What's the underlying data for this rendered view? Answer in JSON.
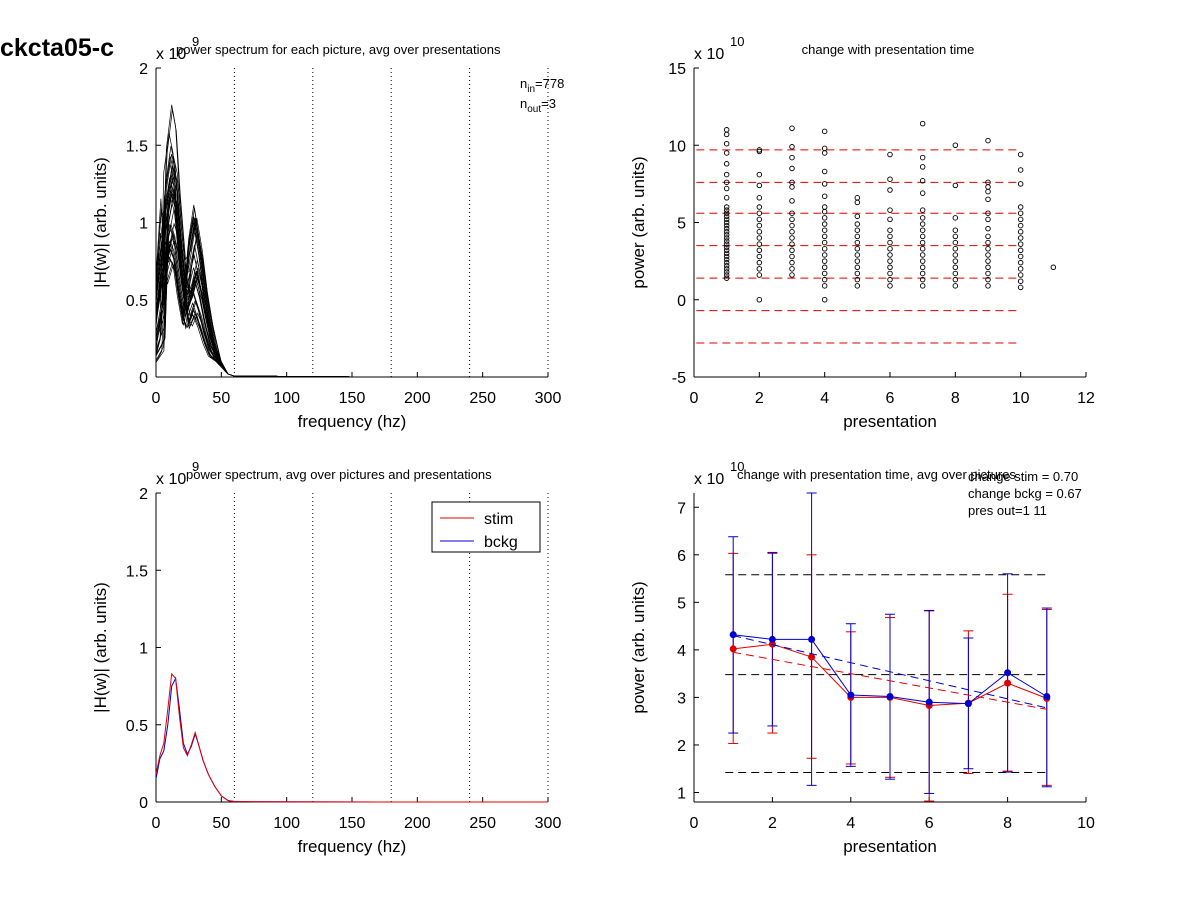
{
  "figure": {
    "supertitle": "ckcta05-c"
  },
  "chart_data": [
    {
      "id": "top-left",
      "type": "line",
      "title": "power spectrum for each picture, avg over presentations",
      "xlabel": "frequency (hz)",
      "ylabel": "|H(w)| (arb. units)",
      "xlim": [
        0,
        300
      ],
      "ylim": [
        0,
        2
      ],
      "xticks": [
        0,
        50,
        100,
        150,
        200,
        250,
        300
      ],
      "yticks": [
        0,
        0.5,
        1,
        1.5,
        2
      ],
      "xtick_labels": [
        "0",
        "50",
        "100",
        "150",
        "200",
        "250",
        "300"
      ],
      "ytick_labels": [
        "0",
        "0.5",
        "1",
        "1.5",
        "2"
      ],
      "exponent_label": "x 10",
      "exponent_power": "9",
      "vlines": [
        60,
        120,
        180,
        240,
        300
      ],
      "annotations": [
        {
          "base": "n",
          "sub": "in",
          "value": "=778"
        },
        {
          "base": "n",
          "sub": "out",
          "value": "=3"
        }
      ],
      "curves_note": "many overlapping per-picture spectra",
      "curve_count": 40,
      "curve_template": {
        "x": [
          0,
          5,
          8,
          12,
          15,
          18,
          22,
          26,
          30,
          34,
          38,
          42,
          48,
          55,
          60,
          70,
          100,
          150,
          300
        ],
        "y": [
          0.45,
          0.8,
          1.05,
          1.25,
          1.15,
          0.85,
          0.55,
          0.6,
          0.75,
          0.6,
          0.4,
          0.25,
          0.1,
          0.02,
          0.005,
          0.008,
          0.003,
          0.001,
          0
        ]
      },
      "color": "#000000"
    },
    {
      "id": "top-right",
      "type": "scatter",
      "title": "change with presentation time",
      "xlabel": "presentation",
      "ylabel": "power (arb. units)",
      "xlim": [
        0,
        12
      ],
      "ylim": [
        -5,
        15
      ],
      "xticks": [
        0,
        2,
        4,
        6,
        8,
        10,
        12
      ],
      "yticks": [
        -5,
        0,
        5,
        10,
        15
      ],
      "xtick_labels": [
        "0",
        "2",
        "4",
        "6",
        "8",
        "10",
        "12"
      ],
      "ytick_labels": [
        "-5",
        "0",
        "5",
        "10",
        "15"
      ],
      "exponent_label": "x 10",
      "exponent_power": "10",
      "hlines": [
        9.7,
        7.6,
        5.6,
        3.5,
        1.4,
        -0.7,
        -2.8
      ],
      "hline_xrange": [
        0.5,
        11
      ],
      "hline_color": "#e00000",
      "points": [
        {
          "x": 1,
          "ys": [
            1.4,
            1.6,
            1.8,
            2.0,
            2.2,
            2.4,
            2.6,
            2.8,
            3.0,
            3.2,
            3.4,
            3.6,
            3.8,
            4.0,
            4.2,
            4.4,
            4.6,
            4.8,
            5.0,
            5.2,
            5.4,
            5.6,
            5.8,
            6.0,
            6.6,
            7.2,
            7.6,
            8.1,
            8.8,
            9.5,
            10.1,
            10.7,
            11.0
          ]
        },
        {
          "x": 2,
          "ys": [
            0.0,
            1.6,
            2.0,
            2.4,
            2.8,
            3.2,
            3.6,
            4.0,
            4.4,
            4.8,
            5.2,
            5.6,
            6.0,
            6.6,
            7.4,
            8.1,
            9.6,
            9.7
          ]
        },
        {
          "x": 3,
          "ys": [
            1.6,
            2.0,
            2.4,
            2.8,
            3.2,
            3.6,
            4.0,
            4.4,
            4.8,
            5.2,
            5.6,
            6.4,
            7.3,
            7.6,
            8.5,
            9.2,
            9.9,
            11.1
          ]
        },
        {
          "x": 4,
          "ys": [
            0.0,
            0.9,
            1.3,
            1.7,
            2.1,
            2.5,
            2.9,
            3.3,
            3.7,
            4.1,
            4.5,
            4.9,
            5.3,
            5.7,
            6.0,
            6.7,
            7.5,
            8.3,
            9.5,
            9.8,
            10.9
          ]
        },
        {
          "x": 5,
          "ys": [
            0.9,
            1.3,
            1.7,
            2.1,
            2.5,
            2.9,
            3.3,
            3.7,
            4.1,
            4.5,
            4.9,
            5.4,
            6.3,
            6.6
          ]
        },
        {
          "x": 6,
          "ys": [
            0.9,
            1.3,
            1.7,
            2.1,
            2.5,
            2.9,
            3.3,
            3.7,
            4.1,
            4.5,
            5.2,
            5.8,
            7.1,
            7.8,
            9.4
          ]
        },
        {
          "x": 7,
          "ys": [
            0.9,
            1.3,
            1.7,
            2.1,
            2.5,
            2.9,
            3.3,
            3.7,
            4.1,
            4.5,
            4.9,
            5.3,
            5.8,
            6.9,
            7.7,
            8.6,
            9.2,
            11.4
          ]
        },
        {
          "x": 8,
          "ys": [
            0.9,
            1.3,
            1.7,
            2.1,
            2.5,
            2.9,
            3.3,
            3.7,
            4.1,
            4.5,
            5.3,
            7.4,
            10.0
          ]
        },
        {
          "x": 9,
          "ys": [
            0.9,
            1.3,
            1.7,
            2.1,
            2.5,
            2.9,
            3.3,
            3.7,
            4.1,
            4.6,
            5.2,
            5.6,
            6.5,
            7.0,
            7.3,
            7.6,
            10.3
          ]
        },
        {
          "x": 10,
          "ys": [
            0.8,
            1.2,
            1.6,
            2.0,
            2.4,
            2.8,
            3.2,
            3.6,
            4.0,
            4.4,
            4.8,
            5.2,
            5.6,
            6.0,
            7.5,
            8.4,
            9.4
          ]
        },
        {
          "x": 11,
          "ys": [
            2.1
          ]
        }
      ]
    },
    {
      "id": "bottom-left",
      "type": "line",
      "title": "power spectrum, avg over pictures and presentations",
      "xlabel": "frequency (hz)",
      "ylabel": "|H(w)| (arb. units)",
      "xlim": [
        0,
        300
      ],
      "ylim": [
        0,
        2
      ],
      "xticks": [
        0,
        50,
        100,
        150,
        200,
        250,
        300
      ],
      "yticks": [
        0,
        0.5,
        1,
        1.5,
        2
      ],
      "xtick_labels": [
        "0",
        "50",
        "100",
        "150",
        "200",
        "250",
        "300"
      ],
      "ytick_labels": [
        "0",
        "0.5",
        "1",
        "1.5",
        "2"
      ],
      "exponent_label": "x 10",
      "exponent_power": "9",
      "vlines": [
        60,
        120,
        180,
        240,
        300
      ],
      "legend": "top-right",
      "series": [
        {
          "name": "stim",
          "color": "#e00000",
          "x": [
            0,
            3,
            6,
            9,
            12,
            15,
            18,
            21,
            24,
            27,
            30,
            33,
            36,
            40,
            45,
            50,
            55,
            60,
            80,
            120,
            200,
            300
          ],
          "y": [
            0.18,
            0.3,
            0.38,
            0.6,
            0.83,
            0.8,
            0.55,
            0.35,
            0.3,
            0.37,
            0.45,
            0.36,
            0.27,
            0.18,
            0.1,
            0.04,
            0.01,
            0.003,
            0.001,
            0.0005,
            0.0002,
            0
          ]
        },
        {
          "name": "bckg",
          "color": "#0000d0",
          "x": [
            0,
            3,
            6,
            9,
            12,
            15,
            18,
            21,
            24,
            27,
            30,
            33,
            36,
            40,
            45,
            50,
            55,
            60,
            80,
            120,
            200,
            300
          ],
          "y": [
            0.15,
            0.28,
            0.33,
            0.5,
            0.75,
            0.8,
            0.6,
            0.38,
            0.31,
            0.36,
            0.44,
            0.36,
            0.27,
            0.18,
            0.1,
            0.04,
            0.01,
            0.003,
            0.001,
            0.0005,
            0.0002,
            0
          ]
        }
      ]
    },
    {
      "id": "bottom-right",
      "type": "line",
      "title": "change with presentation time, avg over pictures",
      "xlabel": "presentation",
      "ylabel": "power (arb. units)",
      "xlim": [
        0,
        10
      ],
      "ylim": [
        0.8,
        7.3
      ],
      "xticks": [
        0,
        2,
        4,
        6,
        8,
        10
      ],
      "yticks": [
        1,
        2,
        3,
        4,
        5,
        6,
        7
      ],
      "xtick_labels": [
        "0",
        "2",
        "4",
        "6",
        "8",
        "10"
      ],
      "ytick_labels": [
        "1",
        "2",
        "3",
        "4",
        "5",
        "6",
        "7"
      ],
      "exponent_label": "x 10",
      "exponent_power": "10",
      "annotations": [
        "change stim = 0.70",
        "change bckg = 0.67",
        "pres out=1 11"
      ],
      "hlines": [
        5.58,
        3.48,
        1.42
      ],
      "hline_xrange": [
        1,
        9
      ],
      "hline_color": "#000000",
      "series": [
        {
          "name": "stim",
          "color": "#e00000",
          "x": [
            1,
            2,
            3,
            4,
            5,
            6,
            7,
            8,
            9
          ],
          "y": [
            4.02,
            4.12,
            3.85,
            3.0,
            3.0,
            2.83,
            2.88,
            3.3,
            2.98
          ],
          "err_low": [
            2.03,
            2.25,
            1.72,
            1.6,
            1.32,
            0.82,
            1.4,
            1.45,
            1.15
          ],
          "err_high": [
            6.03,
            6.03,
            6.0,
            4.38,
            4.68,
            4.82,
            4.4,
            5.17,
            4.85
          ],
          "trend": [
            3.95,
            2.75
          ]
        },
        {
          "name": "bckg",
          "color": "#0000d0",
          "x": [
            1,
            2,
            3,
            4,
            5,
            6,
            7,
            8,
            9
          ],
          "y": [
            4.32,
            4.22,
            4.22,
            3.05,
            3.02,
            2.9,
            2.87,
            3.52,
            3.02
          ],
          "err_low": [
            2.25,
            2.4,
            1.15,
            1.55,
            1.28,
            0.98,
            1.5,
            1.43,
            1.12
          ],
          "err_high": [
            6.38,
            6.05,
            7.3,
            4.55,
            4.75,
            4.83,
            4.25,
            5.6,
            4.88
          ],
          "trend": [
            4.3,
            2.78
          ]
        }
      ]
    }
  ]
}
